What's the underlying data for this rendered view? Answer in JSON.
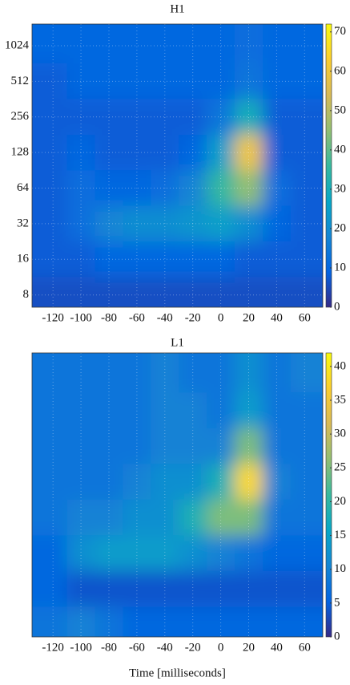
{
  "chart_data": [
    {
      "type": "heatmap",
      "title": "H1",
      "x": [
        -120,
        -100,
        -80,
        -60,
        -40,
        -20,
        0,
        20,
        40,
        60
      ],
      "y": [
        1024,
        512,
        256,
        128,
        64,
        32,
        16,
        8
      ],
      "z": [
        [
          10,
          10,
          10,
          10,
          10,
          10,
          10,
          12,
          10,
          10
        ],
        [
          8,
          10,
          10,
          10,
          10,
          10,
          10,
          14,
          10,
          10
        ],
        [
          8,
          8,
          8,
          8,
          8,
          8,
          14,
          30,
          8,
          8
        ],
        [
          8,
          10,
          8,
          8,
          8,
          10,
          25,
          60,
          8,
          8
        ],
        [
          8,
          12,
          10,
          10,
          12,
          18,
          35,
          45,
          12,
          8
        ],
        [
          8,
          12,
          18,
          20,
          20,
          22,
          25,
          20,
          10,
          8
        ],
        [
          8,
          8,
          10,
          10,
          10,
          10,
          10,
          8,
          8,
          8
        ],
        [
          6,
          6,
          6,
          6,
          6,
          6,
          6,
          6,
          6,
          6
        ]
      ],
      "xlim": [
        -135,
        73
      ],
      "xticks": [
        -120,
        -100,
        -80,
        -60,
        -40,
        -20,
        0,
        20,
        40,
        60
      ],
      "ylim": [
        6.3,
        1560
      ],
      "yticks": [
        8,
        16,
        32,
        64,
        128,
        256,
        512,
        1024
      ],
      "log_y": true,
      "zlim": [
        0,
        72
      ],
      "cticks": [
        0,
        10,
        20,
        30,
        40,
        50,
        60,
        70
      ],
      "grid": true,
      "colormap": [
        "#352a87",
        "#0363e1",
        "#1485d4",
        "#06a7c6",
        "#38b99e",
        "#92bf73",
        "#d9ba56",
        "#fcce2e",
        "#f9fb0e"
      ]
    },
    {
      "type": "heatmap",
      "title": "L1",
      "xlabel": "Time [milliseconds]",
      "x": [
        -120,
        -100,
        -80,
        -60,
        -40,
        -20,
        0,
        20,
        40,
        60
      ],
      "y": [
        1024,
        512,
        256,
        128,
        64,
        32,
        16,
        8
      ],
      "z": [
        [
          8,
          8,
          8,
          8,
          10,
          8,
          8,
          12,
          8,
          10
        ],
        [
          8,
          8,
          8,
          8,
          10,
          10,
          8,
          14,
          8,
          8
        ],
        [
          8,
          8,
          8,
          8,
          10,
          10,
          10,
          25,
          8,
          8
        ],
        [
          8,
          8,
          8,
          10,
          12,
          12,
          18,
          38,
          10,
          8
        ],
        [
          8,
          10,
          10,
          12,
          12,
          18,
          25,
          25,
          8,
          8
        ],
        [
          6,
          12,
          14,
          14,
          14,
          12,
          10,
          8,
          6,
          6
        ],
        [
          6,
          4,
          4,
          4,
          4,
          4,
          4,
          4,
          4,
          4
        ],
        [
          8,
          10,
          8,
          6,
          6,
          6,
          6,
          6,
          6,
          6
        ]
      ],
      "xlim": [
        -135,
        73
      ],
      "xticks": [
        -120,
        -100,
        -80,
        -60,
        -40,
        -20,
        0,
        20,
        40,
        60
      ],
      "ylim": [
        6.3,
        1560
      ],
      "log_y": true,
      "zlim": [
        0,
        42
      ],
      "cticks": [
        0,
        5,
        10,
        15,
        20,
        25,
        30,
        35,
        40
      ],
      "grid": true,
      "colormap": [
        "#352a87",
        "#0363e1",
        "#1485d4",
        "#06a7c6",
        "#38b99e",
        "#92bf73",
        "#d9ba56",
        "#fcce2e",
        "#f9fb0e"
      ]
    }
  ]
}
